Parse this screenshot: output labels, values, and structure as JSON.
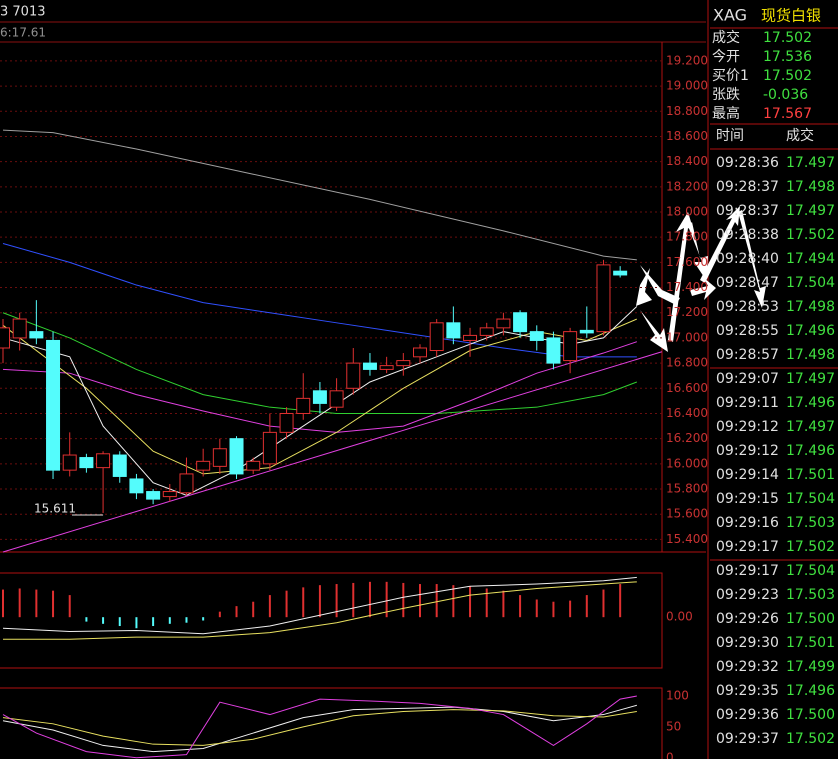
{
  "header": {
    "left_text": "3 7013",
    "sub_text": "6:17.61"
  },
  "quote": {
    "symbol": "XAG",
    "name": "现货白银",
    "rows": [
      {
        "label": "成交",
        "value": "17.502"
      },
      {
        "label": "今开",
        "value": "17.536"
      },
      {
        "label": "买价1",
        "value": "17.502"
      },
      {
        "label": "张跌",
        "value": "-0.036"
      },
      {
        "label": "最高",
        "value": "17.567"
      }
    ]
  },
  "trades": {
    "headers": [
      "时间",
      "成交"
    ],
    "rows": [
      [
        "09:28:36",
        "17.497"
      ],
      [
        "09:28:37",
        "17.498"
      ],
      [
        "09:28:37",
        "17.497"
      ],
      [
        "09:28:38",
        "17.502"
      ],
      [
        "09:28:40",
        "17.494"
      ],
      [
        "09:28:47",
        "17.504"
      ],
      [
        "09:28:53",
        "17.498"
      ],
      [
        "09:28:55",
        "17.496"
      ],
      [
        "09:28:57",
        "17.498"
      ],
      [
        "09:29:07",
        "17.497"
      ],
      [
        "09:29:11",
        "17.496"
      ],
      [
        "09:29:12",
        "17.497"
      ],
      [
        "09:29:12",
        "17.496"
      ],
      [
        "09:29:14",
        "17.501"
      ],
      [
        "09:29:15",
        "17.504"
      ],
      [
        "09:29:16",
        "17.503"
      ],
      [
        "09:29:17",
        "17.502"
      ],
      [
        "09:29:17",
        "17.504"
      ],
      [
        "09:29:23",
        "17.503"
      ],
      [
        "09:29:26",
        "17.500"
      ],
      [
        "09:29:30",
        "17.501"
      ],
      [
        "09:29:32",
        "17.499"
      ],
      [
        "09:29:35",
        "17.496"
      ],
      [
        "09:29:36",
        "17.500"
      ],
      [
        "09:29:37",
        "17.502"
      ]
    ]
  },
  "chart_data": [
    {
      "type": "candlestick",
      "up_color": "#e03030",
      "down_color": "#54fcfc",
      "open": [
        16.92,
        17.0,
        17.05,
        16.98,
        15.95,
        16.05,
        15.97,
        16.07,
        15.88,
        15.78,
        15.74,
        15.77,
        15.95,
        15.98,
        16.2,
        15.95,
        16.0,
        16.25,
        16.4,
        16.58,
        16.45,
        16.6,
        16.8,
        16.75,
        16.78,
        16.85,
        16.9,
        17.12,
        16.98,
        17.02,
        17.08,
        17.2,
        17.05,
        17.0,
        16.82,
        17.06,
        17.05,
        17.53
      ],
      "high": [
        17.15,
        17.2,
        17.3,
        17.05,
        16.25,
        16.08,
        16.1,
        16.1,
        15.92,
        15.8,
        15.84,
        16.05,
        16.12,
        16.2,
        16.22,
        16.05,
        16.4,
        16.45,
        16.72,
        16.65,
        16.68,
        16.92,
        16.88,
        16.85,
        16.88,
        16.95,
        17.15,
        17.25,
        17.08,
        17.12,
        17.2,
        17.22,
        17.1,
        17.05,
        17.08,
        17.25,
        17.62,
        17.57
      ],
      "low": [
        16.8,
        16.9,
        16.95,
        15.88,
        15.9,
        15.93,
        15.61,
        15.85,
        15.72,
        15.68,
        15.7,
        15.75,
        15.9,
        15.92,
        15.88,
        15.92,
        15.95,
        16.2,
        16.35,
        16.4,
        16.42,
        16.55,
        16.7,
        16.72,
        16.7,
        16.8,
        16.85,
        16.95,
        16.85,
        16.98,
        17.02,
        17.0,
        16.9,
        16.75,
        16.72,
        17.0,
        17.02,
        17.48
      ],
      "close": [
        17.08,
        17.15,
        17.0,
        15.95,
        16.07,
        15.97,
        16.08,
        15.9,
        15.77,
        15.72,
        15.78,
        15.92,
        16.02,
        16.12,
        15.92,
        16.02,
        16.25,
        16.4,
        16.52,
        16.48,
        16.58,
        16.8,
        16.75,
        16.78,
        16.82,
        16.92,
        17.12,
        17.0,
        17.02,
        17.08,
        17.15,
        17.05,
        16.98,
        16.8,
        17.05,
        17.04,
        17.58,
        17.5
      ],
      "annotation": "15.611",
      "series": [
        {
          "color": "#a0a0a0",
          "x": [
            0,
            3,
            8,
            15,
            22,
            30,
            36,
            38
          ],
          "values": [
            18.65,
            18.63,
            18.5,
            18.3,
            18.1,
            17.85,
            17.65,
            17.62
          ]
        },
        {
          "color": "#3050ff",
          "x": [
            0,
            4,
            8,
            12,
            16,
            20,
            26,
            30,
            34,
            38
          ],
          "values": [
            17.75,
            17.6,
            17.42,
            17.28,
            17.2,
            17.12,
            17.0,
            16.92,
            16.85,
            16.85
          ]
        },
        {
          "color": "#30d030",
          "x": [
            0,
            4,
            8,
            12,
            16,
            20,
            26,
            32,
            36,
            38
          ],
          "values": [
            17.2,
            17.0,
            16.75,
            16.55,
            16.45,
            16.4,
            16.4,
            16.45,
            16.55,
            16.65
          ]
        },
        {
          "color": "#e040e0",
          "x": [
            0,
            4,
            8,
            12,
            16,
            20,
            24,
            28,
            32,
            36,
            38
          ],
          "values": [
            16.75,
            16.72,
            16.55,
            16.42,
            16.3,
            16.25,
            16.3,
            16.5,
            16.72,
            16.88,
            16.97
          ]
        },
        {
          "color": "#e8e060",
          "x": [
            0,
            5,
            9,
            12,
            16,
            20,
            24,
            28,
            32,
            35,
            38
          ],
          "values": [
            17.1,
            16.6,
            16.1,
            15.92,
            15.97,
            16.25,
            16.6,
            16.9,
            17.05,
            16.98,
            17.15
          ]
        },
        {
          "color": "#f0f0f0",
          "x": [
            0,
            4,
            6,
            9,
            11,
            14,
            18,
            22,
            26,
            30,
            34,
            36,
            38
          ],
          "values": [
            17.0,
            16.85,
            16.3,
            15.85,
            15.75,
            15.95,
            16.3,
            16.65,
            16.85,
            17.05,
            16.95,
            17.0,
            17.25
          ]
        },
        {
          "color": "#e040e0",
          "x": [
            0,
            39.5
          ],
          "values": [
            15.3,
            16.89
          ]
        }
      ],
      "ylim": [
        15.3,
        19.35
      ],
      "yticks": [
        {
          "value": 15.4,
          "label": "15.400"
        },
        {
          "value": 15.6,
          "label": "15.600"
        },
        {
          "value": 15.8,
          "label": "15.800"
        },
        {
          "value": 16.0,
          "label": "16.000"
        },
        {
          "value": 16.2,
          "label": "16.200"
        },
        {
          "value": 16.4,
          "label": "16.400"
        },
        {
          "value": 16.6,
          "label": "16.600"
        },
        {
          "value": 16.8,
          "label": "16.800"
        },
        {
          "value": 17.0,
          "label": "17.000"
        },
        {
          "value": 17.2,
          "label": "17.200"
        },
        {
          "value": 17.4,
          "label": "17.400"
        },
        {
          "value": 17.6,
          "label": "17.600"
        },
        {
          "value": 17.8,
          "label": "17.800"
        },
        {
          "value": 18.0,
          "label": "18.000"
        },
        {
          "value": 18.2,
          "label": "18.200"
        },
        {
          "value": 18.4,
          "label": "18.400"
        },
        {
          "value": 18.6,
          "label": "18.600"
        },
        {
          "value": 18.8,
          "label": "18.800"
        },
        {
          "value": 19.0,
          "label": "19.000"
        },
        {
          "value": 19.2,
          "label": "19.200"
        }
      ]
    },
    {
      "type": "macd",
      "up_color": "#e03030",
      "down_color": "#54fcfc",
      "values": [
        0.25,
        0.26,
        0.25,
        0.24,
        0.2,
        -0.04,
        -0.06,
        -0.08,
        -0.1,
        -0.08,
        -0.06,
        -0.05,
        -0.03,
        0.05,
        0.1,
        0.14,
        0.2,
        0.24,
        0.27,
        0.29,
        0.3,
        0.31,
        0.32,
        0.32,
        0.31,
        0.3,
        0.3,
        0.29,
        0.28,
        0.26,
        0.24,
        0.2,
        0.16,
        0.14,
        0.15,
        0.2,
        0.25,
        0.3
      ],
      "series": [
        {
          "color": "#f0f0f0",
          "x": [
            0,
            4,
            8,
            12,
            16,
            20,
            24,
            28,
            32,
            36,
            38
          ],
          "values": [
            -0.1,
            -0.13,
            -0.12,
            -0.15,
            -0.08,
            0.05,
            0.18,
            0.28,
            0.3,
            0.33,
            0.36
          ]
        },
        {
          "color": "#e8e060",
          "x": [
            0,
            4,
            8,
            12,
            16,
            20,
            24,
            28,
            32,
            36,
            38
          ],
          "values": [
            -0.2,
            -0.2,
            -0.18,
            -0.18,
            -0.14,
            -0.05,
            0.08,
            0.2,
            0.26,
            0.3,
            0.32
          ]
        }
      ],
      "ylim": [
        -0.46,
        0.4
      ],
      "yticks": [
        {
          "value": 0,
          "label": "0.00"
        }
      ]
    },
    {
      "type": "kdj",
      "series": [
        {
          "color": "#f0f0f0",
          "x": [
            0,
            3,
            6,
            9,
            12,
            15,
            18,
            21,
            24,
            27,
            30,
            33,
            36,
            38
          ],
          "values": [
            60,
            45,
            20,
            10,
            15,
            40,
            65,
            78,
            80,
            82,
            75,
            60,
            70,
            85
          ]
        },
        {
          "color": "#e8e060",
          "x": [
            0,
            3,
            6,
            9,
            12,
            15,
            18,
            21,
            24,
            27,
            30,
            33,
            36,
            38
          ],
          "values": [
            65,
            55,
            35,
            22,
            20,
            30,
            50,
            68,
            75,
            78,
            76,
            68,
            66,
            75
          ]
        },
        {
          "color": "#e040e0",
          "x": [
            0,
            2,
            5,
            8,
            11,
            13,
            16,
            19,
            22,
            25,
            28,
            30,
            33,
            35,
            37,
            38
          ],
          "values": [
            70,
            40,
            10,
            0,
            5,
            90,
            70,
            95,
            92,
            88,
            80,
            70,
            20,
            55,
            95,
            100
          ]
        }
      ],
      "ylim": [
        -2,
        113
      ],
      "yticks": [
        0,
        50,
        100
      ]
    }
  ]
}
